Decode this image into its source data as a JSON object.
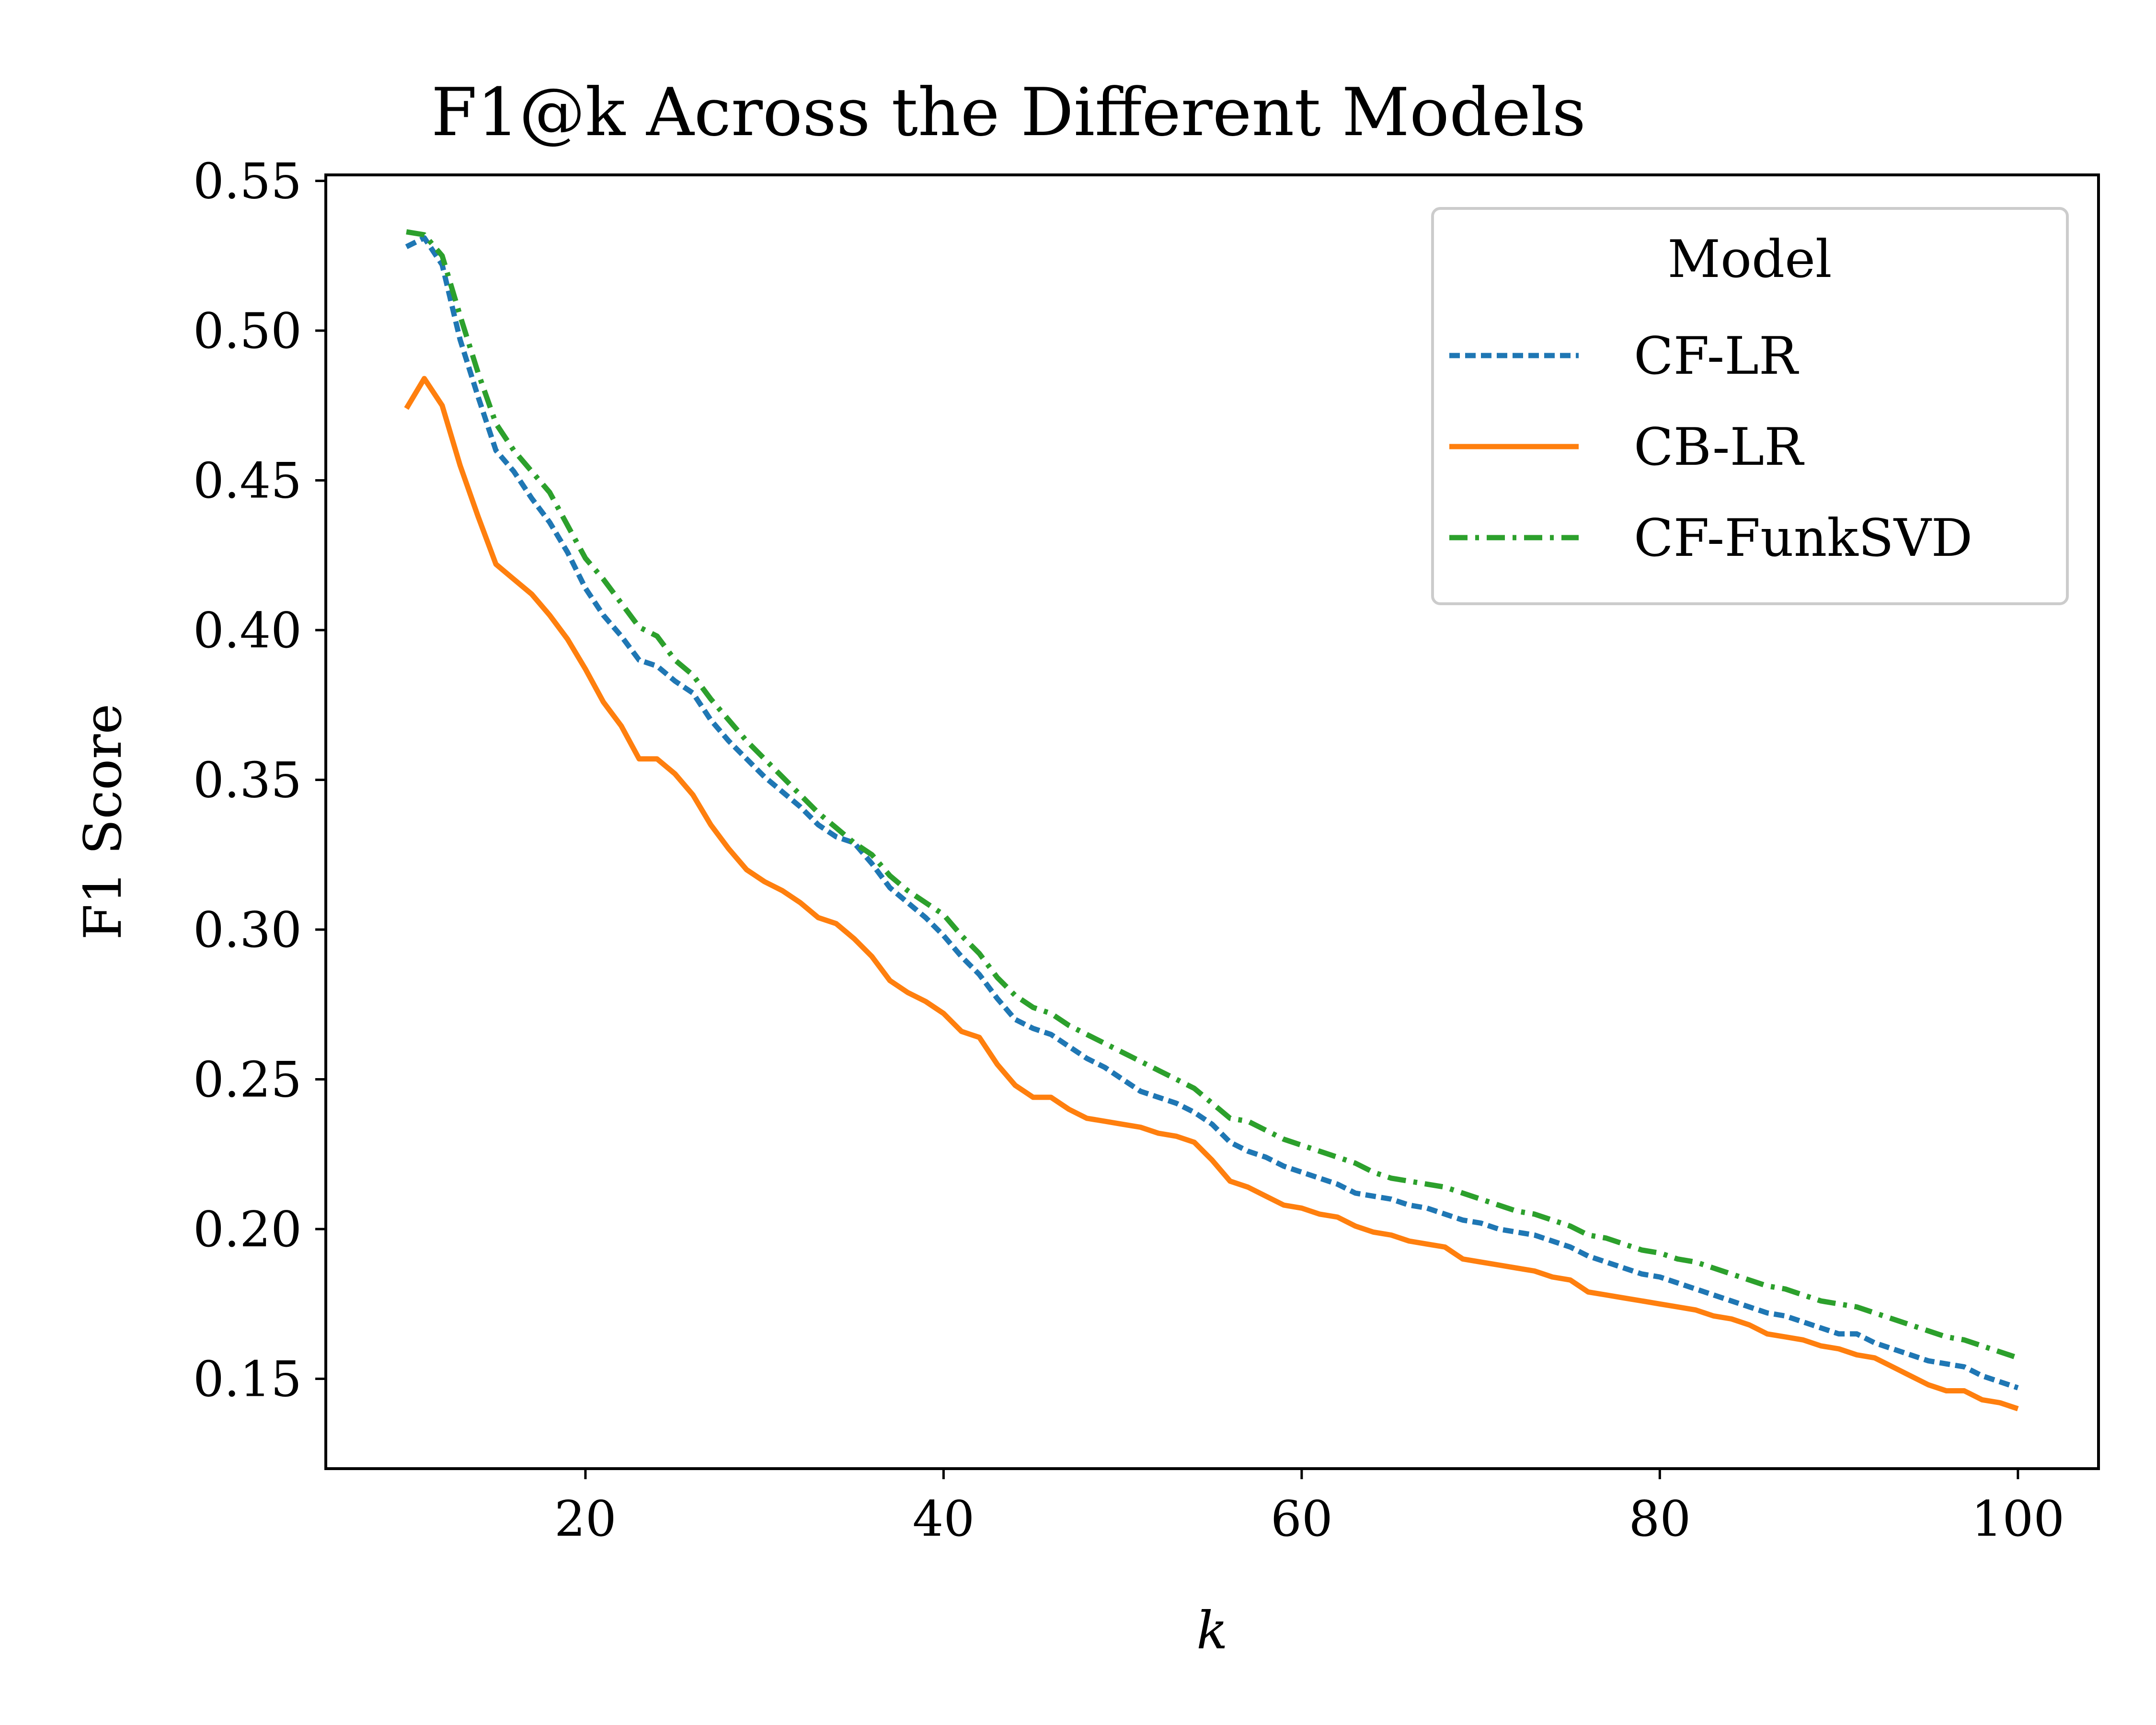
{
  "chart_data": {
    "type": "line",
    "title": "F1@k Across the Different Models",
    "xlabel": "k",
    "ylabel": "F1 Score",
    "xlim": [
      5.5,
      104.5
    ],
    "ylim": [
      0.12,
      0.552
    ],
    "xticks": [
      20,
      40,
      60,
      80,
      100
    ],
    "yticks": [
      0.15,
      0.2,
      0.25,
      0.3,
      0.35,
      0.4,
      0.45,
      0.5,
      0.55
    ],
    "xtick_labels": [
      "20",
      "40",
      "60",
      "80",
      "100"
    ],
    "ytick_labels": [
      "0.15",
      "0.20",
      "0.25",
      "0.30",
      "0.35",
      "0.40",
      "0.45",
      "0.50",
      "0.55"
    ],
    "grid": false,
    "legend": {
      "title": "Model",
      "placement": "upper right"
    },
    "x": [
      10,
      11,
      12,
      13,
      14,
      15,
      16,
      17,
      18,
      19,
      20,
      21,
      22,
      23,
      24,
      25,
      26,
      27,
      28,
      29,
      30,
      31,
      32,
      33,
      34,
      35,
      36,
      37,
      38,
      39,
      40,
      41,
      42,
      43,
      44,
      45,
      46,
      47,
      48,
      49,
      50,
      51,
      52,
      53,
      54,
      55,
      56,
      57,
      58,
      59,
      60,
      61,
      62,
      63,
      64,
      65,
      66,
      67,
      68,
      69,
      70,
      71,
      72,
      73,
      74,
      75,
      76,
      77,
      78,
      79,
      80,
      81,
      82,
      83,
      84,
      85,
      86,
      87,
      88,
      89,
      90,
      91,
      92,
      93,
      94,
      95,
      96,
      97,
      98,
      99,
      100
    ],
    "series": [
      {
        "name": "CF-LR",
        "color": "#1f77b4",
        "style": "dashed",
        "values": [
          0.528,
          0.531,
          0.522,
          0.497,
          0.478,
          0.46,
          0.453,
          0.444,
          0.436,
          0.426,
          0.414,
          0.405,
          0.398,
          0.39,
          0.388,
          0.383,
          0.379,
          0.37,
          0.363,
          0.357,
          0.351,
          0.346,
          0.341,
          0.335,
          0.331,
          0.329,
          0.322,
          0.314,
          0.309,
          0.304,
          0.298,
          0.291,
          0.285,
          0.277,
          0.27,
          0.267,
          0.265,
          0.261,
          0.257,
          0.254,
          0.25,
          0.246,
          0.244,
          0.242,
          0.239,
          0.235,
          0.229,
          0.226,
          0.224,
          0.221,
          0.219,
          0.217,
          0.215,
          0.212,
          0.211,
          0.21,
          0.208,
          0.207,
          0.205,
          0.203,
          0.202,
          0.2,
          0.199,
          0.198,
          0.196,
          0.194,
          0.191,
          0.189,
          0.187,
          0.185,
          0.184,
          0.182,
          0.18,
          0.178,
          0.176,
          0.174,
          0.172,
          0.171,
          0.169,
          0.167,
          0.165,
          0.165,
          0.162,
          0.16,
          0.158,
          0.156,
          0.155,
          0.154,
          0.151,
          0.149,
          0.147
        ]
      },
      {
        "name": "CB-LR",
        "color": "#ff7f0e",
        "style": "solid",
        "values": [
          0.474,
          0.484,
          0.475,
          0.455,
          0.438,
          0.422,
          0.417,
          0.412,
          0.405,
          0.397,
          0.387,
          0.376,
          0.368,
          0.357,
          0.357,
          0.352,
          0.345,
          0.335,
          0.327,
          0.32,
          0.316,
          0.313,
          0.309,
          0.304,
          0.302,
          0.297,
          0.291,
          0.283,
          0.279,
          0.276,
          0.272,
          0.266,
          0.264,
          0.255,
          0.248,
          0.244,
          0.244,
          0.24,
          0.237,
          0.236,
          0.235,
          0.234,
          0.232,
          0.231,
          0.229,
          0.223,
          0.216,
          0.214,
          0.211,
          0.208,
          0.207,
          0.205,
          0.204,
          0.201,
          0.199,
          0.198,
          0.196,
          0.195,
          0.194,
          0.19,
          0.189,
          0.188,
          0.187,
          0.186,
          0.184,
          0.183,
          0.179,
          0.178,
          0.177,
          0.176,
          0.175,
          0.174,
          0.173,
          0.171,
          0.17,
          0.168,
          0.165,
          0.164,
          0.163,
          0.161,
          0.16,
          0.158,
          0.157,
          0.154,
          0.151,
          0.148,
          0.146,
          0.146,
          0.143,
          0.142,
          0.14
        ]
      },
      {
        "name": "CF-FunkSVD",
        "color": "#2ca02c",
        "style": "dashdot",
        "values": [
          0.533,
          0.532,
          0.525,
          0.505,
          0.486,
          0.469,
          0.46,
          0.453,
          0.446,
          0.435,
          0.424,
          0.417,
          0.409,
          0.401,
          0.398,
          0.39,
          0.385,
          0.377,
          0.37,
          0.363,
          0.357,
          0.351,
          0.345,
          0.339,
          0.334,
          0.329,
          0.325,
          0.318,
          0.313,
          0.309,
          0.305,
          0.298,
          0.292,
          0.284,
          0.278,
          0.274,
          0.272,
          0.268,
          0.265,
          0.262,
          0.259,
          0.256,
          0.253,
          0.25,
          0.247,
          0.242,
          0.237,
          0.236,
          0.233,
          0.23,
          0.228,
          0.226,
          0.224,
          0.222,
          0.219,
          0.217,
          0.216,
          0.215,
          0.214,
          0.212,
          0.21,
          0.208,
          0.206,
          0.205,
          0.203,
          0.201,
          0.198,
          0.197,
          0.195,
          0.193,
          0.192,
          0.19,
          0.189,
          0.187,
          0.185,
          0.183,
          0.181,
          0.18,
          0.178,
          0.176,
          0.175,
          0.174,
          0.172,
          0.17,
          0.168,
          0.166,
          0.164,
          0.163,
          0.161,
          0.159,
          0.157
        ]
      }
    ]
  }
}
